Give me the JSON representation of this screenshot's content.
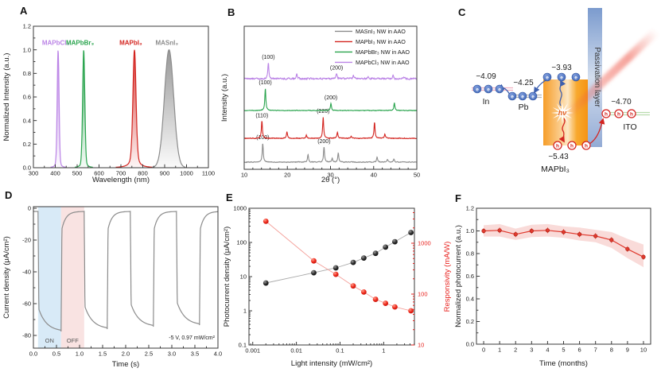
{
  "panels": {
    "A": "A",
    "B": "B",
    "C": "C",
    "D": "D",
    "E": "E",
    "F": "F"
  },
  "chart_data": [
    {
      "panel": "A",
      "type": "area",
      "xlabel": "Wavelength (nm)",
      "ylabel": "Normalized Intensity (a.u.)",
      "xlim": [
        300,
        1100
      ],
      "ylim": [
        0.0,
        1.2
      ],
      "xtick_step": 100,
      "ytick_step": 0.2,
      "series": [
        {
          "label": "MAPbCl₃",
          "color": "#bb84e6",
          "peak_nm": 413,
          "width": 6,
          "height": 1.0,
          "shape_mix": 0.15,
          "label_x": 402,
          "label_y": 1.04
        },
        {
          "label": "MAPbBr₃",
          "color": "#2aa44e",
          "peak_nm": 530,
          "width": 7,
          "height": 1.0,
          "shape_mix": 0.15,
          "label_x": 513,
          "label_y": 1.04
        },
        {
          "label": "MAPbI₃",
          "color": "#d3241f",
          "peak_nm": 762,
          "width": 10,
          "height": 1.0,
          "shape_mix": 0.3,
          "label_x": 745,
          "label_y": 1.04
        },
        {
          "label": "MASnI₃",
          "color": "#8c8c8c",
          "peak_nm": 920,
          "width": 30,
          "height": 1.0,
          "shape_mix": 0.02,
          "label_x": 910,
          "label_y": 1.04
        }
      ]
    },
    {
      "panel": "B",
      "type": "line",
      "xlabel": "2θ (°)",
      "ylabel": "Intensity (a.u.)",
      "xlim": [
        10,
        50
      ],
      "xtick_step": 10,
      "legend": [
        {
          "label": "MASnI₃ NW in AAO",
          "color": "#8c8c8c"
        },
        {
          "label": "MAPbI₃ NW in AAO",
          "color": "#d3241f"
        },
        {
          "label": "MAPbBr₃ NW in AAO",
          "color": "#2aa44e"
        },
        {
          "label": "MAPbCl₃ NW in AAO",
          "color": "#bb84e6"
        }
      ],
      "traces": [
        {
          "label": "MASnI₃ NW in AAO",
          "color": "#8c8c8c",
          "noise": 0.8,
          "peaks": [
            [
              14.3,
              1.0
            ],
            [
              24.8,
              0.42
            ],
            [
              28.5,
              0.8
            ],
            [
              30.4,
              0.22
            ],
            [
              31.8,
              0.48
            ],
            [
              40.8,
              0.28
            ],
            [
              43.2,
              0.14
            ],
            [
              44.7,
              0.17
            ]
          ],
          "annotations": [
            {
              "text": "(100)",
              "x": 14.3
            },
            {
              "text": "(200)",
              "x": 28.5
            }
          ]
        },
        {
          "label": "MAPbI₃ NW in AAO",
          "color": "#d3241f",
          "noise": 0.8,
          "peaks": [
            [
              14.1,
              0.8
            ],
            [
              19.9,
              0.3
            ],
            [
              24.4,
              0.14
            ],
            [
              28.3,
              1.0
            ],
            [
              31.6,
              0.3
            ],
            [
              34.8,
              0.1
            ],
            [
              40.2,
              0.75
            ],
            [
              42.6,
              0.2
            ]
          ],
          "annotations": [
            {
              "text": "(110)",
              "x": 14.1
            },
            {
              "text": "(220)",
              "x": 28.3
            }
          ]
        },
        {
          "label": "MAPbBr₃ NW in AAO",
          "color": "#2aa44e",
          "noise": 0.6,
          "peaks": [
            [
              14.9,
              1.0
            ],
            [
              30.1,
              0.33
            ],
            [
              44.8,
              0.36
            ]
          ],
          "annotations": [
            {
              "text": "(100)",
              "x": 14.9
            },
            {
              "text": "(200)",
              "x": 30.1
            }
          ]
        },
        {
          "label": "MAPbCl₃ NW in AAO",
          "color": "#bb84e6",
          "noise": 1.6,
          "peaks": [
            [
              15.6,
              1.0
            ],
            [
              22.2,
              0.3
            ],
            [
              31.4,
              0.33
            ],
            [
              35.3,
              0.2
            ],
            [
              38.7,
              0.16
            ],
            [
              44.5,
              0.22
            ],
            [
              47.0,
              0.1
            ]
          ],
          "annotations": [
            {
              "text": "(100)",
              "x": 15.6
            },
            {
              "text": "(200)",
              "x": 31.4
            }
          ]
        }
      ]
    },
    {
      "panel": "D",
      "type": "line",
      "xlabel": "Time (s)",
      "ylabel": "Current density (μA/cm²)",
      "xlim": [
        0.0,
        4.0
      ],
      "ylim": [
        -88,
        1
      ],
      "xticks": [
        0.0,
        0.5,
        1.0,
        1.5,
        2.0,
        2.5,
        3.0,
        3.5,
        4.0
      ],
      "yticks": [
        0,
        -20,
        -40,
        -60,
        -80
      ],
      "baseline": -2,
      "cycles": [
        {
          "on": 0.1,
          "off": 0.6,
          "depth": -77.5
        },
        {
          "on": 1.1,
          "off": 1.6,
          "depth": -76
        },
        {
          "on": 2.1,
          "off": 2.6,
          "depth": -74.5
        },
        {
          "on": 3.1,
          "off": 3.6,
          "depth": -73.5
        }
      ],
      "on_label": "ON",
      "off_label": "OFF",
      "annotation": "-5 V, 0.97 mW/cm²",
      "line_color": "#8c8c8c",
      "on_region_color": "#d8eaf7",
      "off_region_color": "#f9e3e2"
    },
    {
      "panel": "E",
      "type": "scatter",
      "xlabel": "Light intensity (mW/cm²)",
      "ylabel_left": "Photocurrent density (μA/cm²)",
      "ylabel_right": "Responsivity (mA/W)",
      "xscale": "log",
      "yscale": "log",
      "xlim": [
        0.00082,
        5.05
      ],
      "ylim_left": [
        0.1,
        1000
      ],
      "ylim_right": [
        10,
        4870
      ],
      "x": [
        0.002,
        0.025,
        0.08,
        0.2,
        0.35,
        0.65,
        1.1,
        1.8,
        4.2
      ],
      "photocurrent_uA_cm2": [
        6.5,
        13,
        18,
        26,
        35,
        48,
        73,
        105,
        195
      ],
      "responsivity_mA_W": [
        2700,
        450,
        245,
        145,
        110,
        79,
        66,
        56,
        47
      ],
      "left_color": "#111111",
      "right_color": "#e8211d"
    },
    {
      "panel": "F",
      "type": "line",
      "xlabel": "Time (months)",
      "ylabel": "Normalized photocurrent (a.u.)",
      "xlim": [
        0,
        10
      ],
      "ylim": [
        0.0,
        1.2
      ],
      "x": [
        0,
        1,
        2,
        3,
        4,
        5,
        6,
        7,
        8,
        9,
        10
      ],
      "y": [
        1.0,
        1.005,
        0.97,
        1.0,
        1.005,
        0.99,
        0.97,
        0.955,
        0.92,
        0.84,
        0.77
      ],
      "band_upper": [
        1.05,
        1.06,
        1.02,
        1.055,
        1.06,
        1.04,
        1.03,
        1.01,
        0.99,
        0.93,
        0.88
      ],
      "band_lower": [
        0.95,
        0.95,
        0.92,
        0.945,
        0.95,
        0.94,
        0.915,
        0.9,
        0.85,
        0.76,
        0.68
      ],
      "line_color": "#e03a2f",
      "band_color": "#e03a2f"
    }
  ],
  "diagram": {
    "in_level": "−4.09",
    "in_label": "In",
    "pb_level": "−4.25",
    "pb_label": "Pb",
    "cb_level": "−3.93",
    "vb_level": "−5.43",
    "material_label": "MAPbI₃",
    "ito_level": "−4.70",
    "ito_label": "ITO",
    "passivation_label": "Passivation layer",
    "hv_label": "hν",
    "electron_symbol": "e",
    "hole_symbol": "h"
  }
}
